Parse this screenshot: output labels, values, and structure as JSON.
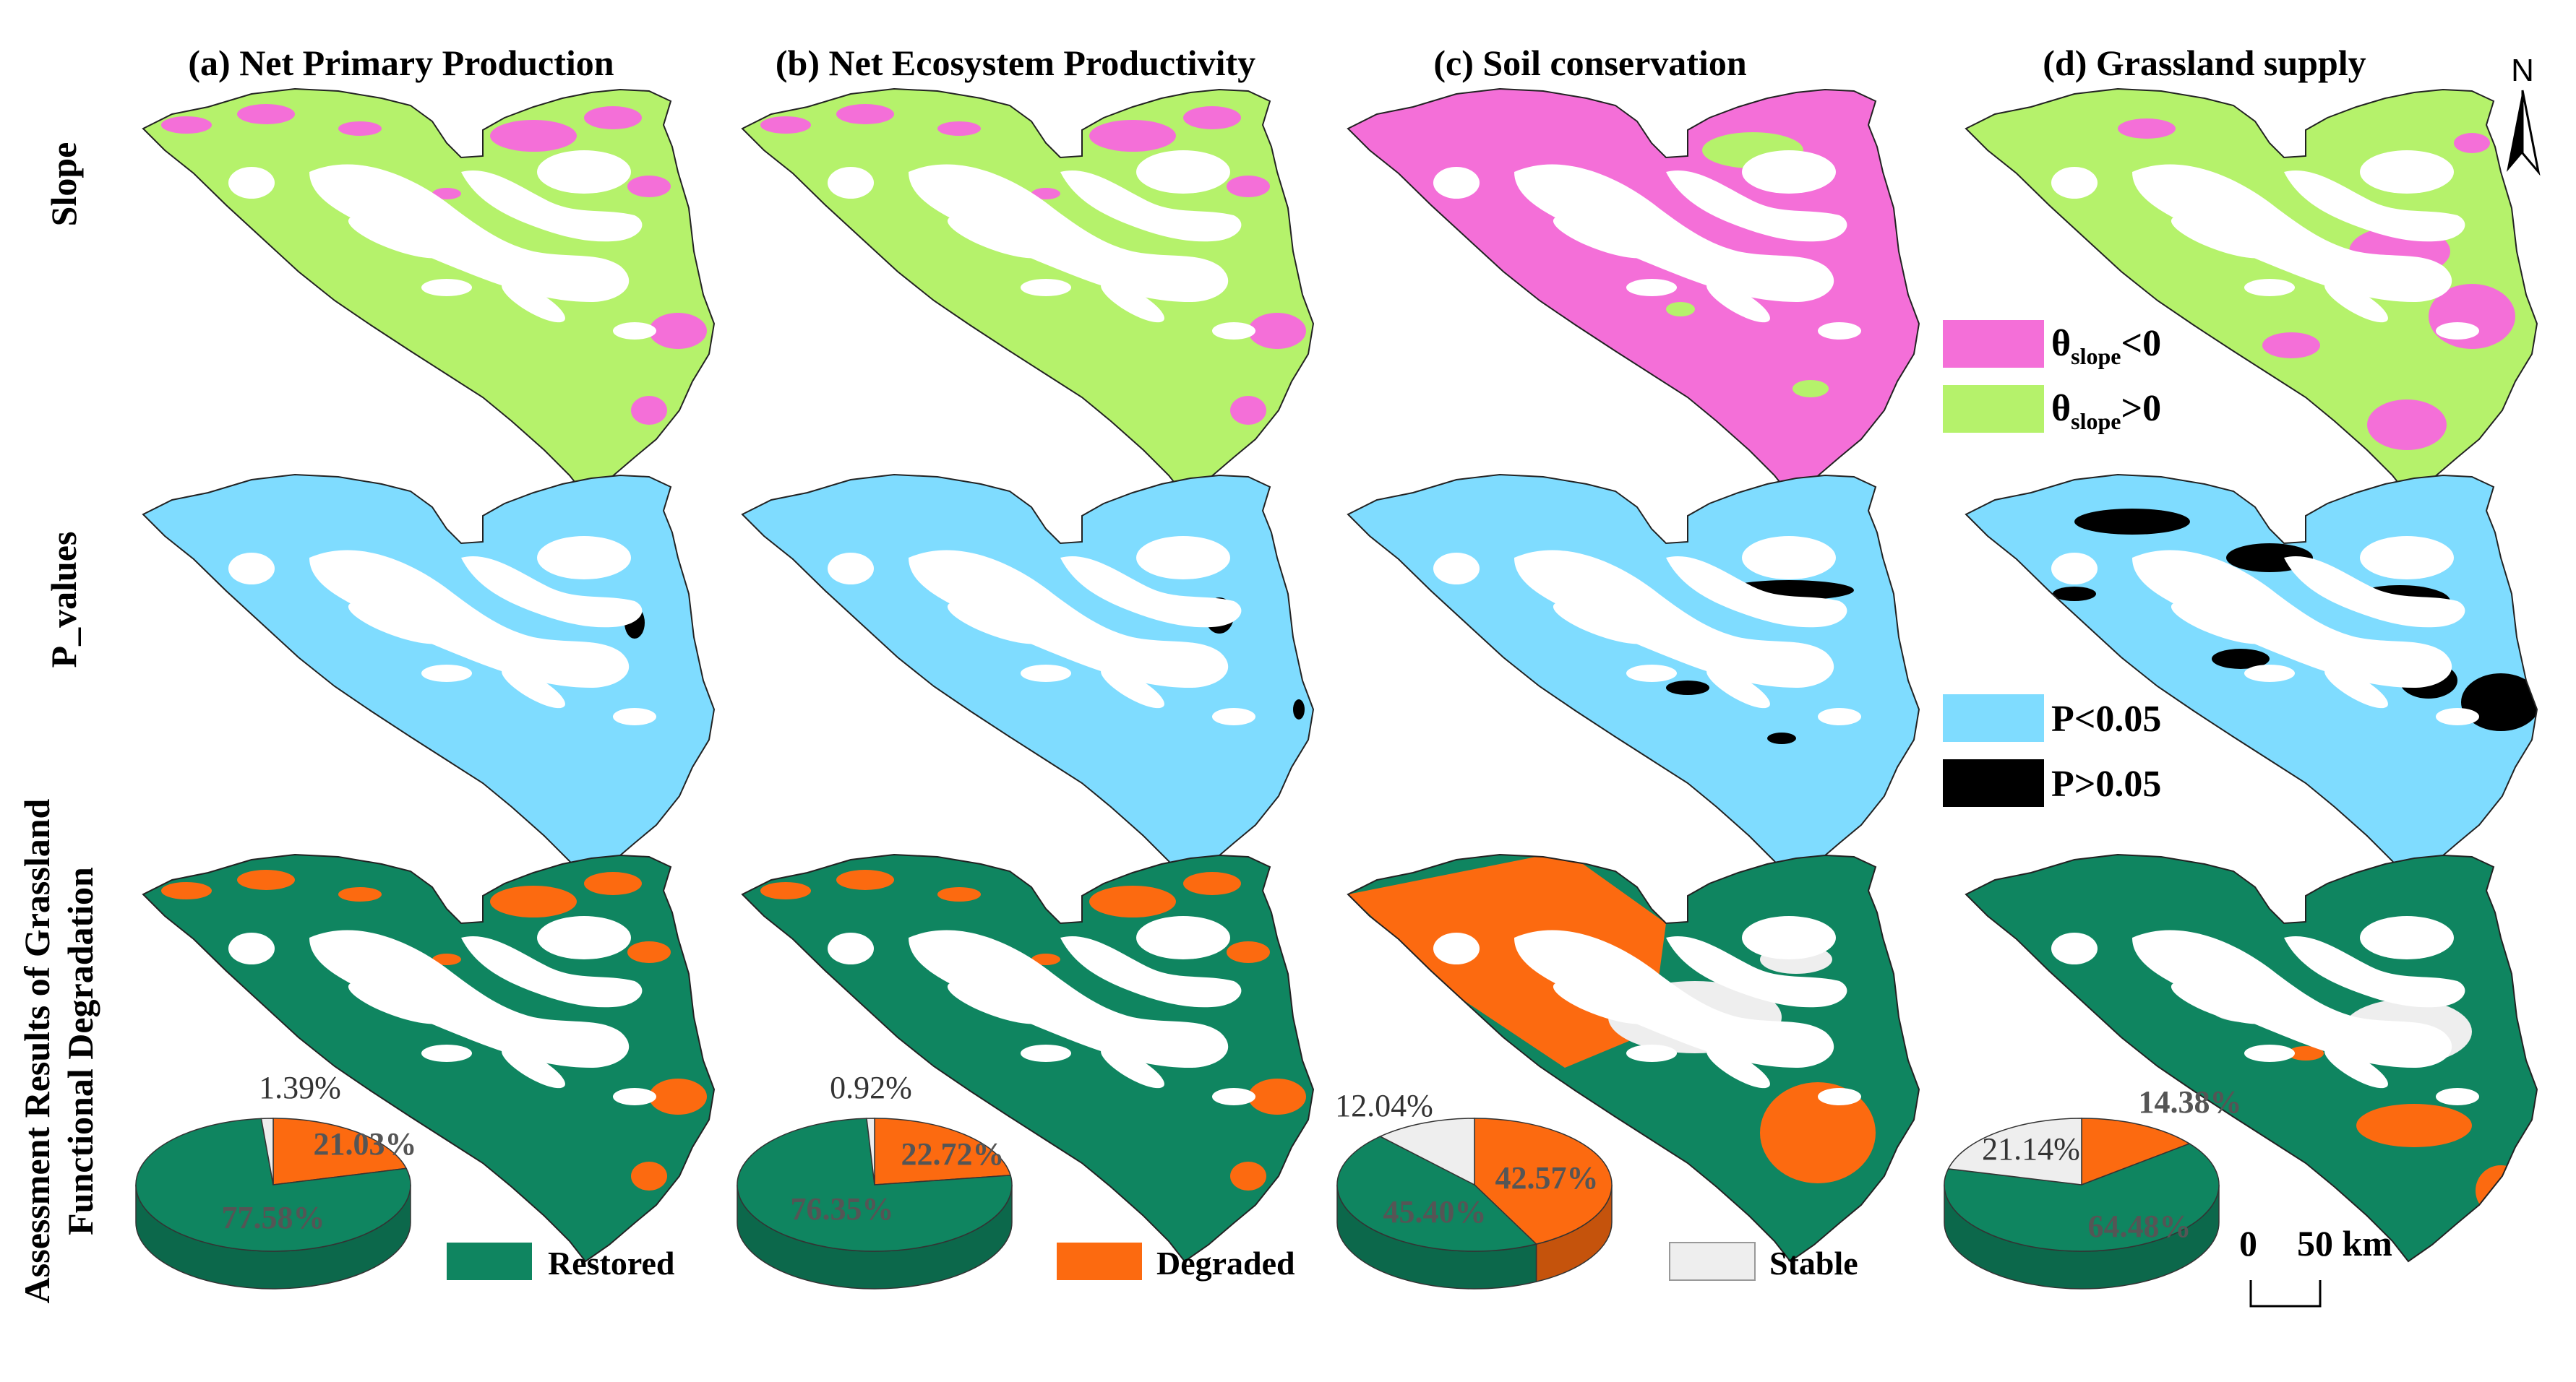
{
  "columns": [
    {
      "title": "(a) Net Primary Production"
    },
    {
      "title": "(b) Net Ecosystem Productivity"
    },
    {
      "title": "(c) Soil conservation"
    },
    {
      "title": "(d) Grassland supply"
    }
  ],
  "rows": [
    {
      "label": "Slope"
    },
    {
      "label": "P_values"
    },
    {
      "label_line1": "Assessment Results of Grassland",
      "label_line2": "Functional Degradation"
    }
  ],
  "north_arrow": {
    "label": "N"
  },
  "slope_legend": [
    {
      "theta": "θ",
      "sub": "slope",
      "rel": "<0",
      "color": "#f46fd8"
    },
    {
      "theta": "θ",
      "sub": "slope",
      "rel": ">0",
      "color": "#b5f26b"
    }
  ],
  "pvalue_legend": [
    {
      "label": "P<0.05",
      "color": "#7fdcff"
    },
    {
      "label": "P>0.05",
      "color": "#000000"
    }
  ],
  "class_legend": [
    {
      "label": "Restored",
      "color": "#0f8560"
    },
    {
      "label": "Degraded",
      "color": "#fc6a10"
    },
    {
      "label": "Stable",
      "color": "#eeeeee"
    }
  ],
  "scale_bar": {
    "zero": "0",
    "distance": "50 km"
  },
  "chart_data": [
    {
      "type": "pie",
      "panel": "(a) Net Primary Production",
      "slices": [
        {
          "class": "Restored",
          "value": 77.58,
          "label": "77.58%"
        },
        {
          "class": "Degraded",
          "value": 21.03,
          "label": "21.03%"
        },
        {
          "class": "Stable",
          "value": 1.39,
          "label": "1.39%"
        }
      ]
    },
    {
      "type": "pie",
      "panel": "(b) Net Ecosystem Productivity",
      "slices": [
        {
          "class": "Restored",
          "value": 76.35,
          "label": "76.35%"
        },
        {
          "class": "Degraded",
          "value": 22.72,
          "label": "22.72%"
        },
        {
          "class": "Stable",
          "value": 0.92,
          "label": "0.92%"
        }
      ]
    },
    {
      "type": "pie",
      "panel": "(c) Soil conservation",
      "slices": [
        {
          "class": "Restored",
          "value": 45.4,
          "label": "45.40%"
        },
        {
          "class": "Degraded",
          "value": 42.57,
          "label": "42.57%"
        },
        {
          "class": "Stable",
          "value": 12.04,
          "label": "12.04%"
        }
      ]
    },
    {
      "type": "pie",
      "panel": "(d) Grassland supply",
      "slices": [
        {
          "class": "Restored",
          "value": 64.48,
          "label": "64.48%"
        },
        {
          "class": "Degraded",
          "value": 14.38,
          "label": "14.38%"
        },
        {
          "class": "Stable",
          "value": 21.14,
          "label": "21.14%"
        }
      ]
    }
  ]
}
